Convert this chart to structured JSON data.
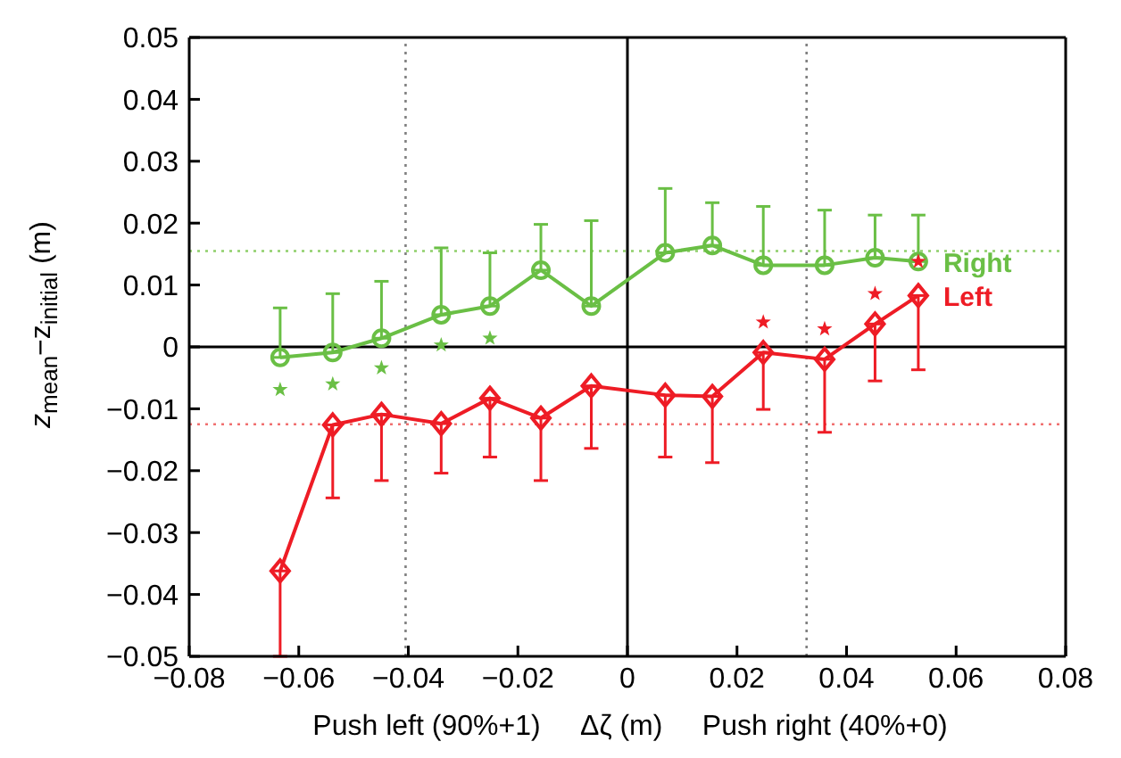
{
  "chart_data": {
    "type": "line",
    "xlabel": "Push left (90%+1)     Δζ (m)     Push right (40%+0)",
    "ylabel": "z$_{mean}$−z$_{initial}$ (m)",
    "xlim": [
      -0.08,
      0.08
    ],
    "xticks": [
      -0.08,
      -0.06,
      -0.04,
      -0.02,
      0,
      0.02,
      0.04,
      0.06,
      0.08
    ],
    "ylim": [
      -0.05,
      0.05
    ],
    "yticks": [
      -0.05,
      -0.04,
      -0.03,
      -0.02,
      -0.01,
      0,
      0.01,
      0.02,
      0.03,
      0.04,
      0.05
    ],
    "grid": false,
    "legend": "right",
    "line_style": "solid",
    "ref_lines": [
      {
        "axis": "x",
        "value": 0,
        "color": "#000000",
        "line_style": "solid"
      },
      {
        "axis": "y",
        "value": 0,
        "color": "#000000",
        "line_style": "solid"
      },
      {
        "axis": "x",
        "value": -0.0405,
        "color": "#808080",
        "line_style": "dotted"
      },
      {
        "axis": "x",
        "value": 0.0327,
        "color": "#808080",
        "line_style": "dotted"
      },
      {
        "axis": "y",
        "value": 0.0155,
        "color": "#8fcf6a",
        "line_style": "dotted"
      },
      {
        "axis": "y",
        "value": -0.0125,
        "color": "#f07070",
        "line_style": "dotted"
      }
    ],
    "series": [
      {
        "name": "Right",
        "marker": "circle",
        "color": "#6abf45",
        "x": [
          -0.0634,
          -0.0538,
          -0.0449,
          -0.034,
          -0.0251,
          -0.0158,
          -0.0066,
          0.0069,
          0.0155,
          0.0248,
          0.036,
          0.0452,
          0.0531
        ],
        "values": [
          -0.0017,
          -0.0009,
          0.0014,
          0.0052,
          0.0066,
          0.0124,
          0.0066,
          0.0152,
          0.0164,
          0.0132,
          0.0132,
          0.0144,
          0.0138
        ],
        "errors": [
          [
            -0.0017,
            0.0063
          ],
          [
            -0.0009,
            0.0086
          ],
          [
            0.0014,
            0.0106
          ],
          [
            0.0052,
            0.016
          ],
          [
            0.0066,
            0.0152
          ],
          [
            0.0124,
            0.0198
          ],
          [
            0.0066,
            0.0204
          ],
          [
            0.0152,
            0.0256
          ],
          [
            0.0164,
            0.0233
          ],
          [
            0.0132,
            0.0227
          ],
          [
            0.0132,
            0.0221
          ],
          [
            0.0144,
            0.0213
          ],
          [
            0.0138,
            0.0213
          ]
        ]
      },
      {
        "name": "Left",
        "marker": "diamond",
        "color": "#ee1c25",
        "x": [
          -0.0634,
          -0.0538,
          -0.0449,
          -0.034,
          -0.0251,
          -0.0158,
          -0.0066,
          0.0069,
          0.0155,
          0.0248,
          0.036,
          0.0452,
          0.0531
        ],
        "values": [
          -0.0362,
          -0.0126,
          -0.0109,
          -0.0124,
          -0.0083,
          -0.0115,
          -0.0063,
          -0.0078,
          -0.008,
          -0.0009,
          -0.002,
          0.0037,
          0.0083
        ],
        "errors": [
          [
            -0.05,
            -0.0362
          ],
          [
            -0.0244,
            -0.0126
          ],
          [
            -0.0216,
            -0.0109
          ],
          [
            -0.0204,
            -0.0124
          ],
          [
            -0.0178,
            -0.0083
          ],
          [
            -0.0216,
            -0.0115
          ],
          [
            -0.0164,
            -0.0063
          ],
          [
            -0.0178,
            -0.0078
          ],
          [
            -0.0187,
            -0.008
          ],
          [
            -0.0101,
            -0.0009
          ],
          [
            -0.0138,
            -0.002
          ],
          [
            -0.0055,
            0.0037
          ],
          [
            -0.0037,
            0.0083
          ]
        ]
      },
      {
        "type": "scatter",
        "marker": "star",
        "color": "#6abf45",
        "x": [
          -0.0634,
          -0.0538,
          -0.0449,
          -0.034,
          -0.0251
        ],
        "values": [
          -0.0069,
          -0.006,
          -0.0034,
          0.0003,
          0.0014
        ]
      },
      {
        "type": "scatter",
        "marker": "star",
        "color": "#ee1c25",
        "x": [
          0.0248,
          0.036,
          0.0452,
          0.0531
        ],
        "values": [
          0.004,
          0.0029,
          0.0086,
          0.0138
        ]
      }
    ]
  }
}
